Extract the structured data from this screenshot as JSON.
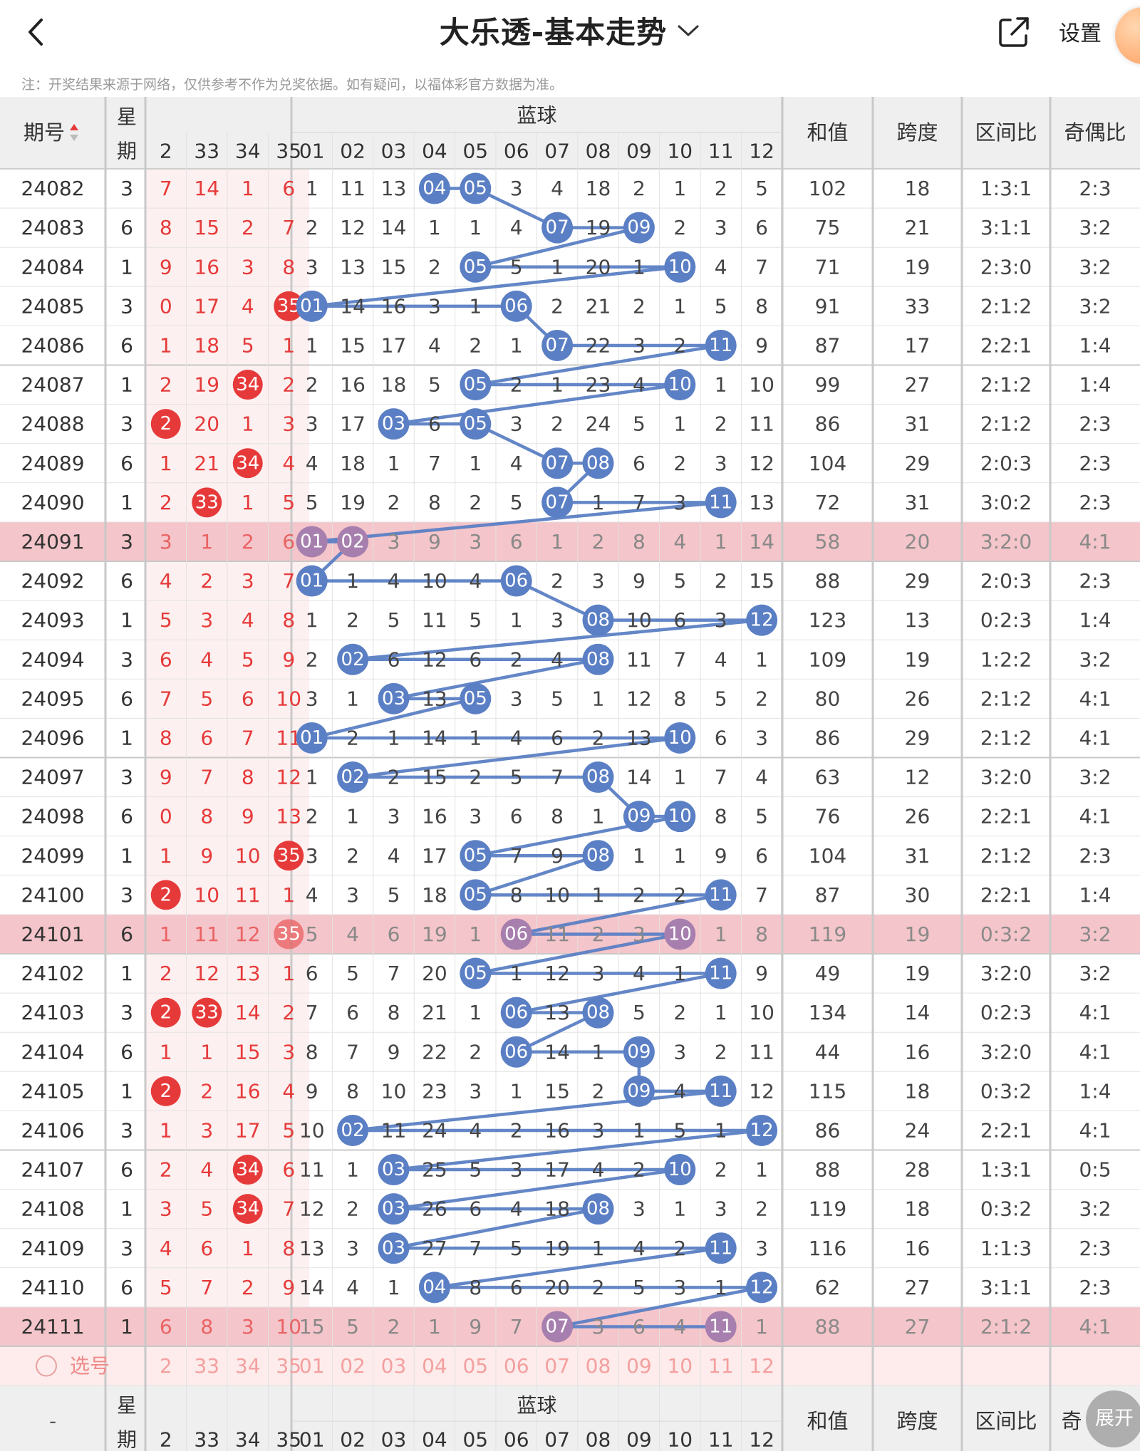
{
  "header": {
    "title": "大乐透-基本走势",
    "settings_label": "设置"
  },
  "notice": "注：开奖结果来源于网络，仅供参考不作为兑奖依据。如有疑问，以福体彩官方数据为准。",
  "table": {
    "period_header": "期号",
    "weekday_header": [
      "星",
      "期"
    ],
    "blue_header": "蓝球",
    "sum_header": "和值",
    "span_header": "跨度",
    "zone_header": "区间比",
    "oddeven_header": "奇偶比",
    "front_cols": [
      "2",
      "33",
      "34",
      "35"
    ],
    "blue_cols": [
      "01",
      "02",
      "03",
      "04",
      "05",
      "06",
      "07",
      "08",
      "09",
      "10",
      "11",
      "12"
    ],
    "select_label": "选号",
    "footer_period": "-",
    "footer_oddeven_partial": "奇",
    "rows": [
      {
        "period": "24082",
        "wd": "3",
        "front": [
          "7",
          "14",
          "1",
          "6"
        ],
        "fh": [],
        "blue": [
          "1",
          "11",
          "13",
          "04",
          "05",
          "3",
          "4",
          "18",
          "2",
          "1",
          "2",
          "5"
        ],
        "bh": [
          4,
          5
        ],
        "sum": "102",
        "span": "18",
        "zone": "1:3:1",
        "oe": "2:3"
      },
      {
        "period": "24083",
        "wd": "6",
        "front": [
          "8",
          "15",
          "2",
          "7"
        ],
        "fh": [],
        "blue": [
          "2",
          "12",
          "14",
          "1",
          "1",
          "4",
          "07",
          "19",
          "09",
          "2",
          "3",
          "6"
        ],
        "bh": [
          7,
          9
        ],
        "sum": "75",
        "span": "21",
        "zone": "3:1:1",
        "oe": "3:2"
      },
      {
        "period": "24084",
        "wd": "1",
        "front": [
          "9",
          "16",
          "3",
          "8"
        ],
        "fh": [],
        "blue": [
          "3",
          "13",
          "15",
          "2",
          "05",
          "5",
          "1",
          "20",
          "1",
          "10",
          "4",
          "7"
        ],
        "bh": [
          5,
          10
        ],
        "sum": "71",
        "span": "19",
        "zone": "2:3:0",
        "oe": "3:2"
      },
      {
        "period": "24085",
        "wd": "3",
        "front": [
          "0",
          "17",
          "4",
          "35"
        ],
        "fh": [
          3
        ],
        "blue": [
          "01",
          "14",
          "16",
          "3",
          "1",
          "06",
          "2",
          "21",
          "2",
          "1",
          "5",
          "8"
        ],
        "bh": [
          1,
          6
        ],
        "sum": "91",
        "span": "33",
        "zone": "2:1:2",
        "oe": "3:2"
      },
      {
        "period": "24086",
        "wd": "6",
        "front": [
          "1",
          "18",
          "5",
          "1"
        ],
        "fh": [],
        "blue": [
          "1",
          "15",
          "17",
          "4",
          "2",
          "1",
          "07",
          "22",
          "3",
          "2",
          "11",
          "9"
        ],
        "bh": [
          7,
          11
        ],
        "sum": "87",
        "span": "17",
        "zone": "2:2:1",
        "oe": "1:4"
      },
      {
        "period": "24087",
        "wd": "1",
        "front": [
          "2",
          "19",
          "34",
          "2"
        ],
        "fh": [
          2
        ],
        "blue": [
          "2",
          "16",
          "18",
          "5",
          "05",
          "2",
          "1",
          "23",
          "4",
          "10",
          "1",
          "10"
        ],
        "bh": [
          5,
          10
        ],
        "sum": "99",
        "span": "27",
        "zone": "2:1:2",
        "oe": "1:4"
      },
      {
        "period": "24088",
        "wd": "3",
        "front": [
          "2",
          "20",
          "1",
          "3"
        ],
        "fh": [
          0
        ],
        "blue": [
          "3",
          "17",
          "03",
          "6",
          "05",
          "3",
          "2",
          "24",
          "5",
          "1",
          "2",
          "11"
        ],
        "bh": [
          3,
          5
        ],
        "sum": "86",
        "span": "31",
        "zone": "2:1:2",
        "oe": "2:3"
      },
      {
        "period": "24089",
        "wd": "6",
        "front": [
          "1",
          "21",
          "34",
          "4"
        ],
        "fh": [
          2
        ],
        "blue": [
          "4",
          "18",
          "1",
          "7",
          "1",
          "4",
          "07",
          "08",
          "6",
          "2",
          "3",
          "12"
        ],
        "bh": [
          7,
          8
        ],
        "sum": "104",
        "span": "29",
        "zone": "2:0:3",
        "oe": "2:3"
      },
      {
        "period": "24090",
        "wd": "1",
        "front": [
          "2",
          "33",
          "1",
          "5"
        ],
        "fh": [
          1
        ],
        "blue": [
          "5",
          "19",
          "2",
          "8",
          "2",
          "5",
          "07",
          "1",
          "7",
          "3",
          "11",
          "13"
        ],
        "bh": [
          7,
          11
        ],
        "sum": "72",
        "span": "31",
        "zone": "3:0:2",
        "oe": "2:3"
      },
      {
        "period": "24091",
        "wd": "3",
        "front": [
          "3",
          "1",
          "2",
          "6"
        ],
        "fh": [],
        "blue": [
          "01",
          "02",
          "3",
          "9",
          "3",
          "6",
          "1",
          "2",
          "8",
          "4",
          "1",
          "14"
        ],
        "bh": [
          1,
          2
        ],
        "sum": "58",
        "span": "20",
        "zone": "3:2:0",
        "oe": "4:1",
        "hl": true
      },
      {
        "period": "24092",
        "wd": "6",
        "front": [
          "4",
          "2",
          "3",
          "7"
        ],
        "fh": [],
        "blue": [
          "01",
          "1",
          "4",
          "10",
          "4",
          "06",
          "2",
          "3",
          "9",
          "5",
          "2",
          "15"
        ],
        "bh": [
          1,
          6
        ],
        "sum": "88",
        "span": "29",
        "zone": "2:0:3",
        "oe": "2:3"
      },
      {
        "period": "24093",
        "wd": "1",
        "front": [
          "5",
          "3",
          "4",
          "8"
        ],
        "fh": [],
        "blue": [
          "1",
          "2",
          "5",
          "11",
          "5",
          "1",
          "3",
          "08",
          "10",
          "6",
          "3",
          "12"
        ],
        "bh": [
          8,
          12
        ],
        "sum": "123",
        "span": "13",
        "zone": "0:2:3",
        "oe": "1:4"
      },
      {
        "period": "24094",
        "wd": "3",
        "front": [
          "6",
          "4",
          "5",
          "9"
        ],
        "fh": [],
        "blue": [
          "2",
          "02",
          "6",
          "12",
          "6",
          "2",
          "4",
          "08",
          "11",
          "7",
          "4",
          "1"
        ],
        "bh": [
          2,
          8
        ],
        "sum": "109",
        "span": "19",
        "zone": "1:2:2",
        "oe": "3:2"
      },
      {
        "period": "24095",
        "wd": "6",
        "front": [
          "7",
          "5",
          "6",
          "10"
        ],
        "fh": [],
        "blue": [
          "3",
          "1",
          "03",
          "13",
          "05",
          "3",
          "5",
          "1",
          "12",
          "8",
          "5",
          "2"
        ],
        "bh": [
          3,
          5
        ],
        "sum": "80",
        "span": "26",
        "zone": "2:1:2",
        "oe": "4:1"
      },
      {
        "period": "24096",
        "wd": "1",
        "front": [
          "8",
          "6",
          "7",
          "11"
        ],
        "fh": [],
        "blue": [
          "01",
          "2",
          "1",
          "14",
          "1",
          "4",
          "6",
          "2",
          "13",
          "10",
          "6",
          "3"
        ],
        "bh": [
          1,
          10
        ],
        "sum": "86",
        "span": "29",
        "zone": "2:1:2",
        "oe": "4:1"
      },
      {
        "period": "24097",
        "wd": "3",
        "front": [
          "9",
          "7",
          "8",
          "12"
        ],
        "fh": [],
        "blue": [
          "1",
          "02",
          "2",
          "15",
          "2",
          "5",
          "7",
          "08",
          "14",
          "1",
          "7",
          "4"
        ],
        "bh": [
          2,
          8
        ],
        "sum": "63",
        "span": "12",
        "zone": "3:2:0",
        "oe": "3:2"
      },
      {
        "period": "24098",
        "wd": "6",
        "front": [
          "0",
          "8",
          "9",
          "13"
        ],
        "fh": [],
        "blue": [
          "2",
          "1",
          "3",
          "16",
          "3",
          "6",
          "8",
          "1",
          "09",
          "10",
          "8",
          "5"
        ],
        "bh": [
          9,
          10
        ],
        "sum": "76",
        "span": "26",
        "zone": "2:2:1",
        "oe": "4:1"
      },
      {
        "period": "24099",
        "wd": "1",
        "front": [
          "1",
          "9",
          "10",
          "35"
        ],
        "fh": [
          3
        ],
        "blue": [
          "3",
          "2",
          "4",
          "17",
          "05",
          "7",
          "9",
          "08",
          "1",
          "1",
          "9",
          "6"
        ],
        "bh": [
          5,
          8
        ],
        "sum": "104",
        "span": "31",
        "zone": "2:1:2",
        "oe": "2:3"
      },
      {
        "period": "24100",
        "wd": "3",
        "front": [
          "2",
          "10",
          "11",
          "1"
        ],
        "fh": [
          0
        ],
        "blue": [
          "4",
          "3",
          "5",
          "18",
          "05",
          "8",
          "10",
          "1",
          "2",
          "2",
          "11",
          "7"
        ],
        "bh": [
          5,
          11
        ],
        "sum": "87",
        "span": "30",
        "zone": "2:2:1",
        "oe": "1:4"
      },
      {
        "period": "24101",
        "wd": "6",
        "front": [
          "1",
          "11",
          "12",
          "35"
        ],
        "fh": [
          3
        ],
        "blue": [
          "5",
          "4",
          "6",
          "19",
          "1",
          "06",
          "11",
          "2",
          "3",
          "10",
          "1",
          "8"
        ],
        "bh": [
          6,
          10
        ],
        "sum": "119",
        "span": "19",
        "zone": "0:3:2",
        "oe": "3:2",
        "hl": true
      },
      {
        "period": "24102",
        "wd": "1",
        "front": [
          "2",
          "12",
          "13",
          "1"
        ],
        "fh": [],
        "blue": [
          "6",
          "5",
          "7",
          "20",
          "05",
          "1",
          "12",
          "3",
          "4",
          "1",
          "11",
          "9"
        ],
        "bh": [
          5,
          11
        ],
        "sum": "49",
        "span": "19",
        "zone": "3:2:0",
        "oe": "3:2"
      },
      {
        "period": "24103",
        "wd": "3",
        "front": [
          "2",
          "33",
          "14",
          "2"
        ],
        "fh": [
          0,
          1
        ],
        "blue": [
          "7",
          "6",
          "8",
          "21",
          "1",
          "06",
          "13",
          "08",
          "5",
          "2",
          "1",
          "10"
        ],
        "bh": [
          6,
          8
        ],
        "sum": "134",
        "span": "14",
        "zone": "0:2:3",
        "oe": "4:1"
      },
      {
        "period": "24104",
        "wd": "6",
        "front": [
          "1",
          "1",
          "15",
          "3"
        ],
        "fh": [],
        "blue": [
          "8",
          "7",
          "9",
          "22",
          "2",
          "06",
          "14",
          "1",
          "09",
          "3",
          "2",
          "11"
        ],
        "bh": [
          6,
          9
        ],
        "sum": "44",
        "span": "16",
        "zone": "3:2:0",
        "oe": "4:1"
      },
      {
        "period": "24105",
        "wd": "1",
        "front": [
          "2",
          "2",
          "16",
          "4"
        ],
        "fh": [
          0
        ],
        "blue": [
          "9",
          "8",
          "10",
          "23",
          "3",
          "1",
          "15",
          "2",
          "09",
          "4",
          "11",
          "12"
        ],
        "bh": [
          9,
          11
        ],
        "sum": "115",
        "span": "18",
        "zone": "0:3:2",
        "oe": "1:4"
      },
      {
        "period": "24106",
        "wd": "3",
        "front": [
          "1",
          "3",
          "17",
          "5"
        ],
        "fh": [],
        "blue": [
          "10",
          "02",
          "11",
          "24",
          "4",
          "2",
          "16",
          "3",
          "1",
          "5",
          "1",
          "12"
        ],
        "bh": [
          2,
          12
        ],
        "sum": "86",
        "span": "24",
        "zone": "2:2:1",
        "oe": "4:1"
      },
      {
        "period": "24107",
        "wd": "6",
        "front": [
          "2",
          "4",
          "34",
          "6"
        ],
        "fh": [
          2
        ],
        "blue": [
          "11",
          "1",
          "03",
          "25",
          "5",
          "3",
          "17",
          "4",
          "2",
          "10",
          "2",
          "1"
        ],
        "bh": [
          3,
          10
        ],
        "sum": "88",
        "span": "28",
        "zone": "1:3:1",
        "oe": "0:5"
      },
      {
        "period": "24108",
        "wd": "1",
        "front": [
          "3",
          "5",
          "34",
          "7"
        ],
        "fh": [
          2
        ],
        "blue": [
          "12",
          "2",
          "03",
          "26",
          "6",
          "4",
          "18",
          "08",
          "3",
          "1",
          "3",
          "2"
        ],
        "bh": [
          3,
          8
        ],
        "sum": "119",
        "span": "18",
        "zone": "0:3:2",
        "oe": "3:2"
      },
      {
        "period": "24109",
        "wd": "3",
        "front": [
          "4",
          "6",
          "1",
          "8"
        ],
        "fh": [],
        "blue": [
          "13",
          "3",
          "03",
          "27",
          "7",
          "5",
          "19",
          "1",
          "4",
          "2",
          "11",
          "3"
        ],
        "bh": [
          3,
          11
        ],
        "sum": "116",
        "span": "16",
        "zone": "1:1:3",
        "oe": "2:3"
      },
      {
        "period": "24110",
        "wd": "6",
        "front": [
          "5",
          "7",
          "2",
          "9"
        ],
        "fh": [],
        "blue": [
          "14",
          "4",
          "1",
          "04",
          "8",
          "6",
          "20",
          "2",
          "5",
          "3",
          "1",
          "12"
        ],
        "bh": [
          4,
          12
        ],
        "sum": "62",
        "span": "27",
        "zone": "3:1:1",
        "oe": "2:3"
      },
      {
        "period": "24111",
        "wd": "1",
        "front": [
          "6",
          "8",
          "3",
          "10"
        ],
        "fh": [],
        "blue": [
          "15",
          "5",
          "2",
          "1",
          "9",
          "7",
          "07",
          "3",
          "6",
          "4",
          "11",
          "1"
        ],
        "bh": [
          7,
          11
        ],
        "sum": "88",
        "span": "27",
        "zone": "2:1:2",
        "oe": "4:1",
        "hl": true
      }
    ]
  },
  "expand_label": "展开",
  "colors": {
    "red": "#e63a3a",
    "blue": "#5b7fc4",
    "highlight": "#f4c5ca",
    "select_bg": "#fdeceb",
    "header_bg": "#efefef",
    "pale_red": "#fdf0f0"
  },
  "icons": [
    "back-icon",
    "chevron-down-icon",
    "share-icon",
    "sort-icon",
    "radio-icon"
  ]
}
